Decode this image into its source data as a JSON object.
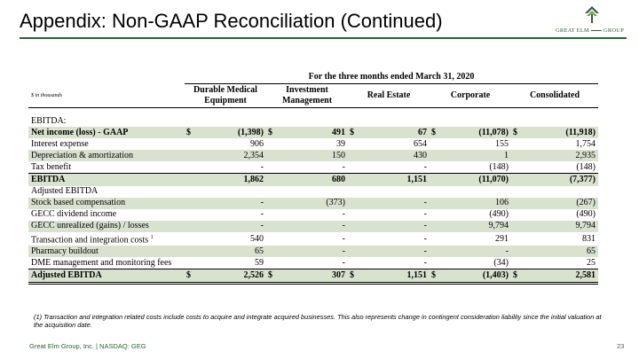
{
  "page": {
    "title": "Appendix: Non-GAAP Reconciliation (Continued)",
    "logo_text": "GREAT ELM GROUP",
    "logo_word1": "GREAT ELM",
    "logo_word2": "GROUP",
    "brand_color": "#2e5d34",
    "shade_color": "#d9e2cf"
  },
  "table": {
    "period_header": "For the three months ended March 31, 2020",
    "units": "$ in thousands",
    "columns": [
      "Durable Medical Equipment",
      "Investment Management",
      "Real Estate",
      "Corporate",
      "Consolidated"
    ],
    "col1_line1": "Durable Medical",
    "col1_line2": "Equipment",
    "col2_line1": "Investment",
    "col2_line2": "Management",
    "col3": "Real Estate",
    "col4": "Corporate",
    "col5": "Consolidated",
    "rows": [
      {
        "label": "EBITDA:",
        "values": [
          "",
          "",
          "",
          "",
          ""
        ]
      },
      {
        "label": "Net income (loss) - GAAP",
        "values": [
          "(1,398)",
          "491",
          "67",
          "(11,078)",
          "(11,918)"
        ]
      },
      {
        "label": "Interest expense",
        "values": [
          "906",
          "39",
          "654",
          "155",
          "1,754"
        ]
      },
      {
        "label": "Depreciation & amortization",
        "values": [
          "2,354",
          "150",
          "430",
          "1",
          "2,935"
        ]
      },
      {
        "label": "Tax benefit",
        "values": [
          "-",
          "-",
          "-",
          "(148)",
          "(148)"
        ]
      },
      {
        "label": "EBITDA",
        "values": [
          "1,862",
          "680",
          "1,151",
          "(11,070)",
          "(7,377)"
        ]
      },
      {
        "label": "Adjusted EBITDA",
        "values": [
          "",
          "",
          "",
          "",
          ""
        ]
      },
      {
        "label": "Stock based compensation",
        "values": [
          "-",
          "(373)",
          "-",
          "106",
          "(267)"
        ]
      },
      {
        "label": "GECC dividend income",
        "values": [
          "-",
          "-",
          "-",
          "(490)",
          "(490)"
        ]
      },
      {
        "label": "GECC unrealized (gains) /  losses",
        "values": [
          "-",
          "-",
          "-",
          "9,794",
          "9,794"
        ]
      },
      {
        "label": "Transaction and integration costs",
        "footnote_mark": "1",
        "values": [
          "540",
          "-",
          "-",
          "291",
          "831"
        ]
      },
      {
        "label": "Pharmacy buildout",
        "values": [
          "65",
          "-",
          "-",
          "-",
          "65"
        ]
      },
      {
        "label": "DME management and monitoring fees",
        "values": [
          "59",
          "-",
          "-",
          "(34)",
          "25"
        ]
      },
      {
        "label": "Adjusted EBITDA",
        "values": [
          "2,526",
          "307",
          "1,151",
          "(1,403)",
          "2,581"
        ]
      }
    ],
    "currency_symbol": "$"
  },
  "footnote": "(1) Transaction and integration related costs include costs to acquire and integrate acquired businesses.  This also represents change in contingent consideration liability since the initial valuation at the acquisition date.",
  "footer": {
    "company": "Great Elm Group, Inc. | NASDAQ: GEG",
    "page_number": "23"
  }
}
